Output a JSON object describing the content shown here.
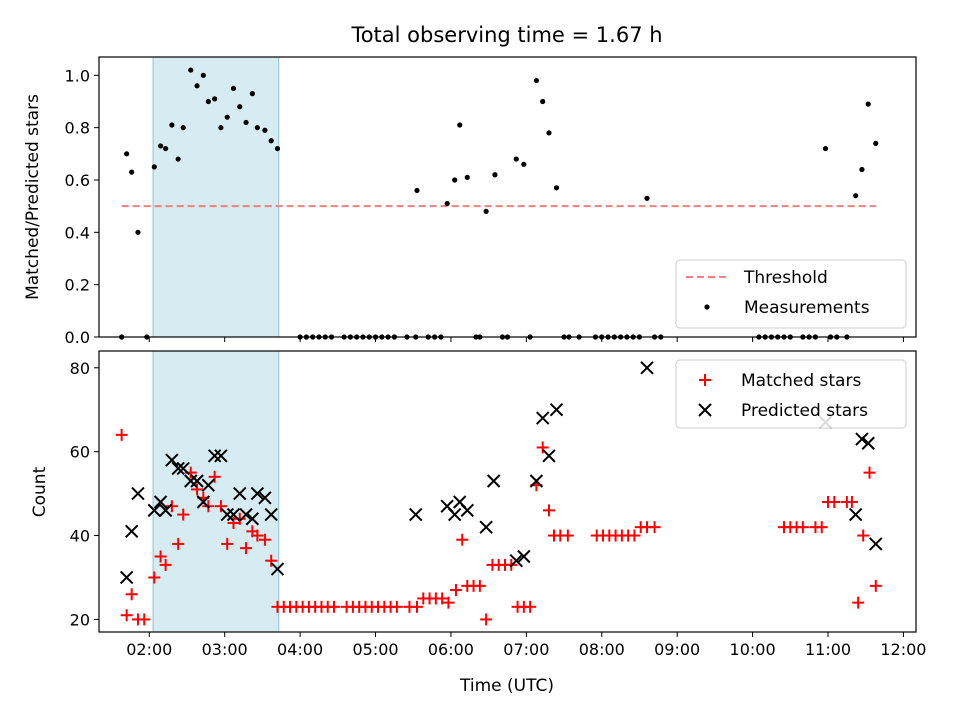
{
  "title": "Total observing time = 1.67 h",
  "colors": {
    "threshold": "#f08080",
    "measurement": "#000000",
    "matched": "#ff0000",
    "predicted": "#000000",
    "span": "#add8e6"
  },
  "chart_data": [
    {
      "type": "scatter",
      "ylabel": "Matched/Predicted stars",
      "xlim": [
        "01:20",
        "12:10"
      ],
      "ylim": [
        0,
        1.07
      ],
      "yticks": [
        "0.0",
        "0.2",
        "0.4",
        "0.6",
        "0.8",
        "1.0"
      ],
      "shaded_span": [
        "02:03",
        "03:43"
      ],
      "legend_position": "lower right",
      "threshold": {
        "name": "Threshold",
        "y": 0.5,
        "x": [
          "01:38",
          "11:38"
        ]
      },
      "series": [
        {
          "name": "Measurements",
          "points": [
            [
              "01:38",
              0
            ],
            [
              "01:42",
              0.7
            ],
            [
              "01:46",
              0.63
            ],
            [
              "01:51",
              0.4
            ],
            [
              "01:58",
              0
            ],
            [
              "02:04",
              0.65
            ],
            [
              "02:09",
              0.73
            ],
            [
              "02:13",
              0.72
            ],
            [
              "02:18",
              0.81
            ],
            [
              "02:23",
              0.68
            ],
            [
              "02:27",
              0.8
            ],
            [
              "02:33",
              1.02
            ],
            [
              "02:38",
              0.96
            ],
            [
              "02:43",
              1.0
            ],
            [
              "02:47",
              0.9
            ],
            [
              "02:52",
              0.91
            ],
            [
              "02:57",
              0.8
            ],
            [
              "03:02",
              0.84
            ],
            [
              "03:07",
              0.95
            ],
            [
              "03:12",
              0.88
            ],
            [
              "03:17",
              0.82
            ],
            [
              "03:22",
              0.93
            ],
            [
              "03:26",
              0.8
            ],
            [
              "03:32",
              0.79
            ],
            [
              "03:37",
              0.75
            ],
            [
              "03:42",
              0.72
            ],
            [
              "04:00",
              0
            ],
            [
              "04:05",
              0
            ],
            [
              "04:10",
              0
            ],
            [
              "04:15",
              0
            ],
            [
              "04:20",
              0
            ],
            [
              "04:25",
              0
            ],
            [
              "04:35",
              0
            ],
            [
              "04:40",
              0
            ],
            [
              "04:45",
              0
            ],
            [
              "04:50",
              0
            ],
            [
              "04:55",
              0
            ],
            [
              "05:00",
              0
            ],
            [
              "05:05",
              0
            ],
            [
              "05:10",
              0
            ],
            [
              "05:15",
              0
            ],
            [
              "05:25",
              0
            ],
            [
              "05:32",
              0
            ],
            [
              "05:33",
              0.56
            ],
            [
              "05:42",
              0
            ],
            [
              "05:47",
              0
            ],
            [
              "05:52",
              0
            ],
            [
              "05:57",
              0.51
            ],
            [
              "06:03",
              0.6
            ],
            [
              "06:07",
              0.81
            ],
            [
              "06:13",
              0.61
            ],
            [
              "06:20",
              0
            ],
            [
              "06:23",
              0
            ],
            [
              "06:28",
              0.48
            ],
            [
              "06:35",
              0.62
            ],
            [
              "06:41",
              0
            ],
            [
              "06:45",
              0
            ],
            [
              "06:52",
              0.68
            ],
            [
              "06:58",
              0.66
            ],
            [
              "07:03",
              0
            ],
            [
              "07:08",
              0.98
            ],
            [
              "07:13",
              0.9
            ],
            [
              "07:18",
              0.78
            ],
            [
              "07:24",
              0.57
            ],
            [
              "07:30",
              0
            ],
            [
              "07:34",
              0
            ],
            [
              "07:42",
              0
            ],
            [
              "07:55",
              0
            ],
            [
              "08:00",
              0
            ],
            [
              "08:05",
              0
            ],
            [
              "08:10",
              0
            ],
            [
              "08:15",
              0
            ],
            [
              "08:20",
              0
            ],
            [
              "08:25",
              0
            ],
            [
              "08:30",
              0
            ],
            [
              "08:36",
              0.53
            ],
            [
              "08:42",
              0
            ],
            [
              "08:47",
              0
            ],
            [
              "10:05",
              0
            ],
            [
              "10:10",
              0
            ],
            [
              "10:15",
              0
            ],
            [
              "10:20",
              0
            ],
            [
              "10:25",
              0
            ],
            [
              "10:30",
              0
            ],
            [
              "10:40",
              0
            ],
            [
              "10:45",
              0
            ],
            [
              "10:50",
              0
            ],
            [
              "10:58",
              0.72
            ],
            [
              "11:02",
              0
            ],
            [
              "11:07",
              0
            ],
            [
              "11:15",
              0
            ],
            [
              "11:22",
              0.54
            ],
            [
              "11:27",
              0.64
            ],
            [
              "11:32",
              0.89
            ],
            [
              "11:38",
              0.74
            ]
          ]
        }
      ]
    },
    {
      "type": "scatter",
      "xlabel": "Time (UTC)",
      "ylabel": "Count",
      "xlim": [
        "01:20",
        "12:10"
      ],
      "ylim": [
        17,
        84
      ],
      "yticks": [
        "20",
        "40",
        "60",
        "80"
      ],
      "xticks": [
        "02:00",
        "03:00",
        "04:00",
        "05:00",
        "06:00",
        "07:00",
        "08:00",
        "09:00",
        "10:00",
        "11:00",
        "12:00"
      ],
      "shaded_span": [
        "02:03",
        "03:43"
      ],
      "legend_position": "upper right",
      "series": [
        {
          "name": "Matched stars",
          "points": [
            [
              "01:38",
              64
            ],
            [
              "01:42",
              21
            ],
            [
              "01:46",
              26
            ],
            [
              "01:51",
              20
            ],
            [
              "01:56",
              20
            ],
            [
              "02:04",
              30
            ],
            [
              "02:09",
              35
            ],
            [
              "02:13",
              33
            ],
            [
              "02:18",
              47
            ],
            [
              "02:23",
              38
            ],
            [
              "02:27",
              45
            ],
            [
              "02:33",
              55
            ],
            [
              "02:38",
              51
            ],
            [
              "02:43",
              49
            ],
            [
              "02:47",
              47
            ],
            [
              "02:52",
              54
            ],
            [
              "02:57",
              47
            ],
            [
              "03:02",
              38
            ],
            [
              "03:07",
              43
            ],
            [
              "03:12",
              44
            ],
            [
              "03:17",
              37
            ],
            [
              "03:22",
              41
            ],
            [
              "03:26",
              40
            ],
            [
              "03:32",
              39
            ],
            [
              "03:37",
              34
            ],
            [
              "03:42",
              23
            ],
            [
              "03:47",
              23
            ],
            [
              "03:52",
              23
            ],
            [
              "03:57",
              23
            ],
            [
              "04:02",
              23
            ],
            [
              "04:07",
              23
            ],
            [
              "04:12",
              23
            ],
            [
              "04:17",
              23
            ],
            [
              "04:22",
              23
            ],
            [
              "04:27",
              23
            ],
            [
              "04:37",
              23
            ],
            [
              "04:42",
              23
            ],
            [
              "04:47",
              23
            ],
            [
              "04:52",
              23
            ],
            [
              "04:57",
              23
            ],
            [
              "05:02",
              23
            ],
            [
              "05:07",
              23
            ],
            [
              "05:12",
              23
            ],
            [
              "05:17",
              23
            ],
            [
              "05:27",
              23
            ],
            [
              "05:33",
              23
            ],
            [
              "05:38",
              25
            ],
            [
              "05:43",
              25
            ],
            [
              "05:48",
              25
            ],
            [
              "05:53",
              25
            ],
            [
              "05:58",
              24
            ],
            [
              "06:04",
              27
            ],
            [
              "06:09",
              39
            ],
            [
              "06:13",
              28
            ],
            [
              "06:18",
              28
            ],
            [
              "06:23",
              28
            ],
            [
              "06:28",
              20
            ],
            [
              "06:33",
              33
            ],
            [
              "06:38",
              33
            ],
            [
              "06:43",
              33
            ],
            [
              "06:48",
              33
            ],
            [
              "06:53",
              23
            ],
            [
              "06:58",
              23
            ],
            [
              "07:03",
              23
            ],
            [
              "07:08",
              52
            ],
            [
              "07:13",
              61
            ],
            [
              "07:18",
              46
            ],
            [
              "07:22",
              40
            ],
            [
              "07:27",
              40
            ],
            [
              "07:33",
              40
            ],
            [
              "07:56",
              40
            ],
            [
              "08:01",
              40
            ],
            [
              "08:06",
              40
            ],
            [
              "08:11",
              40
            ],
            [
              "08:16",
              40
            ],
            [
              "08:21",
              40
            ],
            [
              "08:26",
              40
            ],
            [
              "08:31",
              42
            ],
            [
              "08:36",
              42
            ],
            [
              "08:42",
              42
            ],
            [
              "10:25",
              42
            ],
            [
              "10:30",
              42
            ],
            [
              "10:35",
              42
            ],
            [
              "10:40",
              42
            ],
            [
              "10:50",
              42
            ],
            [
              "10:55",
              42
            ],
            [
              "11:00",
              48
            ],
            [
              "11:05",
              48
            ],
            [
              "11:15",
              48
            ],
            [
              "11:19",
              48
            ],
            [
              "11:24",
              24
            ],
            [
              "11:28",
              40
            ],
            [
              "11:33",
              55
            ],
            [
              "11:38",
              28
            ]
          ]
        },
        {
          "name": "Predicted stars",
          "points": [
            [
              "01:42",
              30
            ],
            [
              "01:46",
              41
            ],
            [
              "01:51",
              50
            ],
            [
              "02:04",
              46
            ],
            [
              "02:09",
              48
            ],
            [
              "02:13",
              46
            ],
            [
              "02:18",
              58
            ],
            [
              "02:23",
              56
            ],
            [
              "02:27",
              56
            ],
            [
              "02:33",
              53
            ],
            [
              "02:38",
              53
            ],
            [
              "02:43",
              48
            ],
            [
              "02:47",
              52
            ],
            [
              "02:52",
              59
            ],
            [
              "02:57",
              59
            ],
            [
              "03:02",
              45
            ],
            [
              "03:07",
              45
            ],
            [
              "03:12",
              50
            ],
            [
              "03:17",
              45
            ],
            [
              "03:22",
              44
            ],
            [
              "03:26",
              50
            ],
            [
              "03:32",
              49
            ],
            [
              "03:37",
              45
            ],
            [
              "03:42",
              32
            ],
            [
              "05:32",
              45
            ],
            [
              "05:57",
              47
            ],
            [
              "06:03",
              45
            ],
            [
              "06:07",
              48
            ],
            [
              "06:13",
              46
            ],
            [
              "06:28",
              42
            ],
            [
              "06:34",
              53
            ],
            [
              "06:52",
              34
            ],
            [
              "06:58",
              35
            ],
            [
              "07:08",
              53
            ],
            [
              "07:13",
              68
            ],
            [
              "07:18",
              59
            ],
            [
              "07:24",
              70
            ],
            [
              "08:36",
              80
            ],
            [
              "10:58",
              67
            ],
            [
              "11:22",
              45
            ],
            [
              "11:27",
              63
            ],
            [
              "11:32",
              62
            ],
            [
              "11:38",
              38
            ]
          ]
        }
      ]
    }
  ]
}
